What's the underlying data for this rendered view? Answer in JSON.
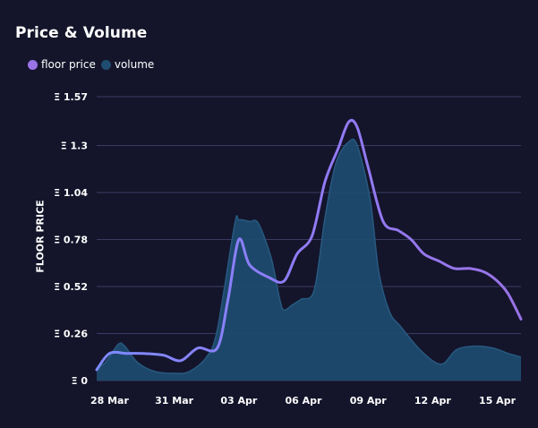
{
  "title": "Price & Volume",
  "legend": {
    "floor_label": "floor price",
    "volume_label": "volume"
  },
  "colors": {
    "background": "#14142b",
    "grid": "#3b3b63",
    "floor_line": "#8f7cf7",
    "floor_line_light": "#7d8bff",
    "floor_legend": "#9a73e6",
    "volume_fill": "#1e4a6e",
    "volume_stroke": "#27597f",
    "volume_legend": "#1f4d70"
  },
  "chart_data": {
    "type": "area",
    "title": "Price & Volume",
    "ylabel": "FLOOR PRICE",
    "y_ticks": [
      "Ξ 0",
      "Ξ 0.26",
      "Ξ 0.52",
      "Ξ 0.78",
      "Ξ 1.04",
      "Ξ 1.3",
      "Ξ 1.57"
    ],
    "y_tick_values": [
      0,
      0.26,
      0.52,
      0.78,
      1.04,
      1.3,
      1.57
    ],
    "ylim": [
      0,
      1.57
    ],
    "x_ticks": [
      "28 Mar",
      "31 Mar",
      "03 Apr",
      "06 Apr",
      "09 Apr",
      "12 Apr",
      "15 Apr"
    ],
    "x_tick_positions": [
      0.5,
      3.5,
      6.5,
      9.5,
      12.5,
      15.5,
      18.5
    ],
    "xlim": [
      -0.1,
      19.6
    ],
    "grid": true,
    "legend_position": "top-left",
    "series": [
      {
        "name": "floor price",
        "kind": "line",
        "x": [
          -0.1,
          0.5,
          1.3,
          2.0,
          3.0,
          3.8,
          4.6,
          5.5,
          6.0,
          6.5,
          7.0,
          7.9,
          8.6,
          9.2,
          9.9,
          10.5,
          11.1,
          11.6,
          12.0,
          12.5,
          13.2,
          13.9,
          14.5,
          15.1,
          15.8,
          16.5,
          17.2,
          17.9,
          18.5,
          19.0,
          19.6
        ],
        "values": [
          0.06,
          0.15,
          0.15,
          0.15,
          0.14,
          0.11,
          0.18,
          0.18,
          0.45,
          0.78,
          0.64,
          0.57,
          0.55,
          0.7,
          0.8,
          1.1,
          1.28,
          1.43,
          1.4,
          1.18,
          0.88,
          0.83,
          0.78,
          0.7,
          0.66,
          0.62,
          0.62,
          0.6,
          0.55,
          0.48,
          0.34
        ]
      },
      {
        "name": "volume",
        "kind": "area",
        "x": [
          -0.1,
          0.3,
          0.9,
          1.2,
          1.8,
          2.6,
          3.5,
          4.2,
          5.0,
          5.5,
          6.3,
          6.5,
          7.0,
          7.4,
          8.0,
          8.4,
          8.6,
          9.0,
          9.4,
          10.0,
          10.5,
          11.0,
          11.6,
          12.0,
          12.6,
          13.0,
          13.5,
          14.0,
          15.0,
          15.9,
          16.6,
          17.4,
          18.3,
          19.0,
          19.6
        ],
        "values": [
          0.07,
          0.1,
          0.2,
          0.19,
          0.1,
          0.05,
          0.04,
          0.05,
          0.13,
          0.28,
          0.86,
          0.89,
          0.88,
          0.87,
          0.68,
          0.45,
          0.39,
          0.42,
          0.45,
          0.5,
          0.9,
          1.2,
          1.32,
          1.3,
          1.0,
          0.6,
          0.38,
          0.3,
          0.16,
          0.09,
          0.17,
          0.19,
          0.18,
          0.15,
          0.13
        ]
      }
    ]
  }
}
